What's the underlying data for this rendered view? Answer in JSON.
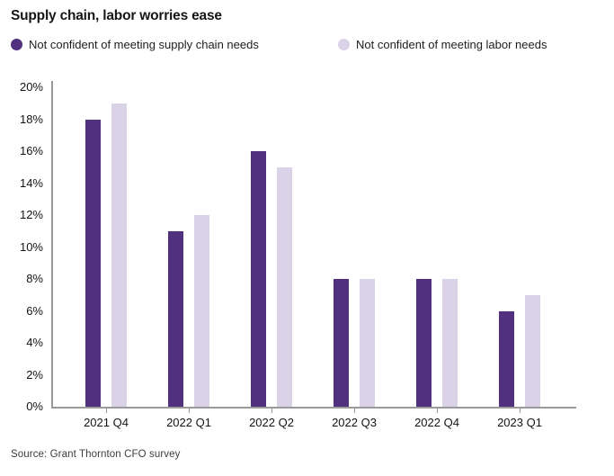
{
  "title": "Supply chain, labor worries ease",
  "legend": [
    {
      "label": "Not confident of meeting supply chain needs",
      "color": "#523080"
    },
    {
      "label": "Not confident of meeting labor needs",
      "color": "#DAD3E8"
    }
  ],
  "chart_data": {
    "type": "bar",
    "categories": [
      "2021 Q4",
      "2022 Q1",
      "2022 Q2",
      "2022 Q3",
      "2022 Q4",
      "2023 Q1"
    ],
    "series": [
      {
        "name": "Not confident of meeting supply chain needs",
        "color": "#523080",
        "values": [
          18,
          11,
          16,
          8,
          8,
          6
        ]
      },
      {
        "name": "Not confident of meeting labor needs",
        "color": "#DAD3E8",
        "values": [
          19,
          12,
          15,
          8,
          8,
          7
        ]
      }
    ],
    "title": "Supply chain, labor worries ease",
    "xlabel": "",
    "ylabel": "",
    "ylim": [
      0,
      20
    ],
    "ytick_step": 2,
    "ytick_suffix": "%",
    "grid": false,
    "legend_position": "top"
  },
  "source": "Source: Grant Thornton CFO survey",
  "colors": {
    "axis": "#9a9a9a",
    "text": "#131313"
  }
}
